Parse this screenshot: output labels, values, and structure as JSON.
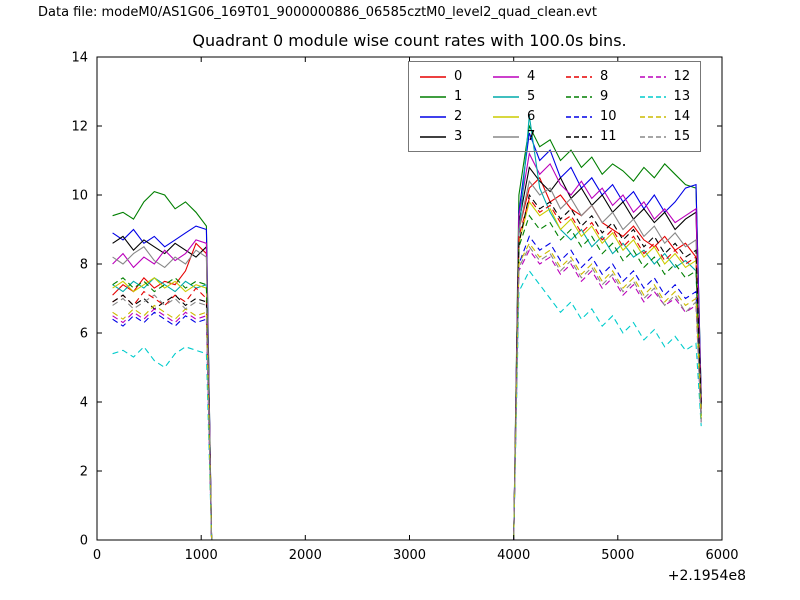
{
  "header": {
    "data_file_label": "Data file: modeM0/AS1G06_169T01_9000000886_06585cztM0_level2_quad_clean.evt"
  },
  "chart_data": {
    "type": "line",
    "title": "Quadrant 0 module wise count rates with 100.0s bins.",
    "xlabel": "",
    "ylabel": "",
    "xlim": [
      0,
      6000
    ],
    "ylim": [
      0,
      14
    ],
    "xticks": [
      0,
      1000,
      2000,
      3000,
      4000,
      5000,
      6000
    ],
    "yticks": [
      0,
      2,
      4,
      6,
      8,
      10,
      12,
      14
    ],
    "x_offset_label": "+2.1954e8",
    "grid": false,
    "legend_position": "upper center-right",
    "legend_ncol": 4,
    "x_seg1": [
      150,
      250,
      350,
      450,
      550,
      650,
      750,
      850,
      950,
      1050
    ],
    "gap": [
      1100,
      4000
    ],
    "x_seg2": [
      4050,
      4150,
      4250,
      4350,
      4450,
      4550,
      4650,
      4750,
      4850,
      4950,
      5050,
      5150,
      5250,
      5350,
      5450,
      5550,
      5650,
      5750,
      5800
    ],
    "series": [
      {
        "name": "0",
        "color": "#e60000",
        "dashed": false,
        "seg1": [
          7.1,
          7.4,
          7.2,
          7.6,
          7.3,
          7.5,
          7.4,
          7.8,
          8.6,
          8.3
        ],
        "seg2": [
          9.0,
          10.2,
          10.5,
          9.8,
          10.0,
          9.6,
          9.4,
          9.7,
          9.2,
          9.0,
          8.8,
          9.1,
          8.7,
          8.5,
          8.8,
          8.4,
          8.6,
          8.2,
          4.0
        ]
      },
      {
        "name": "1",
        "color": "#007f00",
        "dashed": false,
        "seg1": [
          9.4,
          9.5,
          9.3,
          9.8,
          10.1,
          10.0,
          9.6,
          9.8,
          9.5,
          9.1
        ],
        "seg2": [
          10.0,
          12.0,
          11.4,
          11.6,
          11.0,
          11.3,
          10.8,
          11.1,
          10.6,
          10.9,
          10.7,
          10.4,
          10.8,
          10.5,
          10.9,
          10.6,
          10.3,
          10.2,
          4.2
        ]
      },
      {
        "name": "2",
        "color": "#0000e6",
        "dashed": false,
        "seg1": [
          8.9,
          8.7,
          9.0,
          8.6,
          8.8,
          8.5,
          8.7,
          8.9,
          9.1,
          9.0
        ],
        "seg2": [
          9.5,
          11.8,
          11.0,
          11.3,
          10.5,
          10.8,
          10.2,
          10.5,
          10.0,
          10.3,
          9.8,
          10.1,
          9.6,
          10.0,
          9.5,
          9.8,
          10.2,
          10.3,
          4.1
        ]
      },
      {
        "name": "3",
        "color": "#000000",
        "dashed": false,
        "seg1": [
          8.6,
          8.8,
          8.4,
          8.7,
          8.5,
          8.3,
          8.6,
          8.4,
          8.2,
          8.5
        ],
        "seg2": [
          9.2,
          10.8,
          10.4,
          10.1,
          10.5,
          9.9,
          10.2,
          9.7,
          10.0,
          9.5,
          9.8,
          9.3,
          9.6,
          9.2,
          9.5,
          9.0,
          9.3,
          9.5,
          3.9
        ]
      },
      {
        "name": "4",
        "color": "#bb00bb",
        "dashed": false,
        "seg1": [
          8.0,
          8.3,
          7.9,
          8.2,
          8.0,
          8.4,
          8.1,
          8.3,
          8.7,
          8.6
        ],
        "seg2": [
          9.4,
          11.2,
          10.6,
          10.9,
          10.3,
          10.0,
          10.4,
          9.9,
          10.2,
          9.7,
          10.0,
          9.5,
          9.8,
          9.3,
          9.6,
          9.2,
          9.4,
          9.6,
          4.0
        ]
      },
      {
        "name": "5",
        "color": "#00aaaa",
        "dashed": false,
        "seg1": [
          7.4,
          7.2,
          7.5,
          7.3,
          7.6,
          7.4,
          7.2,
          7.5,
          7.3,
          7.4
        ],
        "seg2": [
          8.8,
          12.3,
          10.2,
          9.5,
          9.0,
          8.7,
          9.0,
          8.5,
          8.8,
          8.3,
          8.6,
          8.2,
          8.4,
          8.0,
          8.3,
          7.9,
          8.1,
          7.8,
          3.6
        ]
      },
      {
        "name": "6",
        "color": "#cccc00",
        "dashed": false,
        "seg1": [
          7.3,
          7.5,
          7.2,
          7.4,
          7.6,
          7.3,
          7.5,
          7.2,
          7.4,
          7.3
        ],
        "seg2": [
          8.6,
          9.8,
          9.4,
          9.6,
          9.0,
          9.3,
          8.8,
          9.1,
          8.6,
          8.9,
          8.4,
          8.7,
          8.2,
          8.5,
          8.0,
          8.3,
          7.9,
          8.1,
          3.7
        ]
      },
      {
        "name": "7",
        "color": "#888888",
        "dashed": false,
        "seg1": [
          8.2,
          8.0,
          8.3,
          8.5,
          8.1,
          7.9,
          8.2,
          8.0,
          8.4,
          8.2
        ],
        "seg2": [
          9.0,
          10.4,
          10.0,
          10.2,
          9.6,
          9.9,
          9.4,
          9.7,
          9.2,
          9.5,
          9.0,
          9.3,
          8.8,
          9.1,
          8.6,
          8.9,
          8.5,
          8.7,
          3.8
        ]
      },
      {
        "name": "8",
        "color": "#e60000",
        "dashed": true,
        "seg1": [
          6.9,
          7.1,
          6.8,
          7.2,
          7.0,
          6.8,
          7.1,
          6.9,
          7.3,
          7.0
        ],
        "seg2": [
          8.8,
          9.9,
          9.5,
          9.7,
          9.2,
          9.4,
          8.9,
          9.2,
          8.7,
          9.0,
          8.5,
          8.8,
          8.3,
          8.6,
          8.1,
          8.4,
          8.0,
          8.2,
          3.8
        ]
      },
      {
        "name": "9",
        "color": "#007f00",
        "dashed": true,
        "seg1": [
          7.4,
          7.6,
          7.3,
          7.5,
          7.2,
          7.4,
          7.6,
          7.3,
          7.5,
          7.4
        ],
        "seg2": [
          8.5,
          9.4,
          9.0,
          9.2,
          8.7,
          9.0,
          8.5,
          8.8,
          8.3,
          8.6,
          8.1,
          8.4,
          7.9,
          8.2,
          7.7,
          8.0,
          7.6,
          7.8,
          3.6
        ]
      },
      {
        "name": "10",
        "color": "#0000e6",
        "dashed": true,
        "seg1": [
          6.4,
          6.2,
          6.5,
          6.3,
          6.6,
          6.4,
          6.2,
          6.5,
          6.3,
          6.4
        ],
        "seg2": [
          8.0,
          8.8,
          8.4,
          8.6,
          8.1,
          8.4,
          7.9,
          8.2,
          7.7,
          8.0,
          7.5,
          7.8,
          7.3,
          7.6,
          7.1,
          7.4,
          7.0,
          7.2,
          3.5
        ]
      },
      {
        "name": "11",
        "color": "#000000",
        "dashed": true,
        "seg1": [
          6.9,
          7.1,
          6.8,
          7.0,
          6.7,
          6.9,
          7.1,
          6.8,
          7.0,
          6.9
        ],
        "seg2": [
          8.6,
          10.0,
          9.6,
          9.8,
          9.3,
          9.6,
          9.1,
          9.4,
          8.9,
          9.2,
          8.7,
          9.0,
          8.5,
          8.8,
          8.3,
          8.6,
          8.2,
          8.4,
          3.9
        ]
      },
      {
        "name": "12",
        "color": "#bb00bb",
        "dashed": true,
        "seg1": [
          6.5,
          6.3,
          6.6,
          6.4,
          6.7,
          6.5,
          6.3,
          6.6,
          6.4,
          6.5
        ],
        "seg2": [
          7.8,
          8.4,
          8.0,
          8.2,
          7.7,
          8.0,
          7.5,
          7.8,
          7.3,
          7.6,
          7.1,
          7.4,
          6.9,
          7.2,
          6.8,
          7.0,
          6.6,
          6.8,
          3.4
        ]
      },
      {
        "name": "13",
        "color": "#00cccc",
        "dashed": true,
        "seg1": [
          5.4,
          5.5,
          5.3,
          5.6,
          5.2,
          5.0,
          5.4,
          5.6,
          5.5,
          5.4
        ],
        "seg2": [
          7.2,
          7.8,
          7.4,
          7.0,
          6.6,
          6.9,
          6.4,
          6.7,
          6.2,
          6.5,
          6.0,
          6.3,
          5.8,
          6.1,
          5.6,
          5.9,
          5.5,
          5.7,
          3.3
        ]
      },
      {
        "name": "14",
        "color": "#ccbb00",
        "dashed": true,
        "seg1": [
          6.6,
          6.4,
          6.7,
          6.5,
          6.8,
          6.6,
          6.4,
          6.7,
          6.5,
          6.6
        ],
        "seg2": [
          8.0,
          8.6,
          8.2,
          8.4,
          7.9,
          8.2,
          7.7,
          8.0,
          7.5,
          7.8,
          7.3,
          7.6,
          7.1,
          7.4,
          6.9,
          7.2,
          6.8,
          7.0,
          3.5
        ]
      },
      {
        "name": "15",
        "color": "#888888",
        "dashed": true,
        "seg1": [
          6.8,
          7.0,
          6.7,
          6.9,
          7.1,
          6.8,
          7.0,
          6.7,
          6.9,
          6.8
        ],
        "seg2": [
          7.9,
          8.5,
          8.1,
          8.3,
          7.8,
          8.1,
          7.6,
          7.9,
          7.4,
          7.7,
          7.2,
          7.5,
          7.0,
          7.3,
          6.8,
          7.1,
          6.6,
          6.9,
          3.4
        ]
      }
    ]
  }
}
